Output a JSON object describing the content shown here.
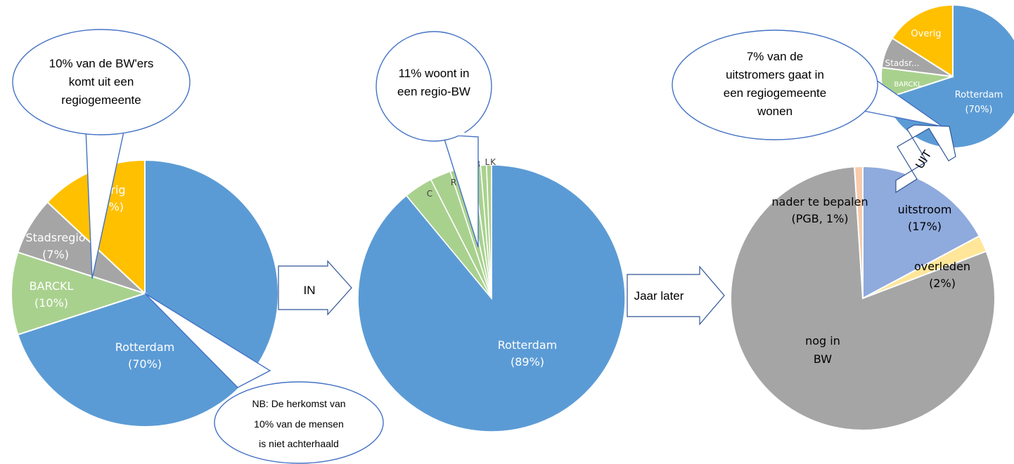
{
  "colors": {
    "rotterdam": "#5B9BD5",
    "barckl": "#A9D18E",
    "stadsregio": "#A5A5A5",
    "overig": "#FFC000",
    "nog_in_bw": "#A5A5A5",
    "uitstroom": "#8FAADC",
    "overleden": "#FFE699",
    "nader": "#F8CBAD",
    "callout_stroke": "#4472C4",
    "arrow_stroke": "#2F5597"
  },
  "chart_data": [
    {
      "type": "pie",
      "slices": [
        {
          "label": "Rotterdam",
          "pct_label": "(70%)",
          "value": 70
        },
        {
          "label": "BARCKL",
          "pct_label": "(10%)",
          "value": 10
        },
        {
          "label": "Stadsregio",
          "pct_label": "(7%)",
          "value": 7
        },
        {
          "label": "Overig",
          "pct_label": "(13%)",
          "value": 13
        }
      ]
    },
    {
      "type": "pie",
      "slices": [
        {
          "label": "Rotterdam",
          "pct_label": "(89%)",
          "value": 89
        },
        {
          "label": "C",
          "pct_label": "",
          "value": 3.5
        },
        {
          "label": "R",
          "pct_label": "",
          "value": 2.5
        },
        {
          "label": "A",
          "pct_label": "",
          "value": 1.5
        },
        {
          "label": "B",
          "pct_label": "",
          "value": 1.3
        },
        {
          "label": "",
          "pct_label": "",
          "value": 0.9
        },
        {
          "label": "L",
          "pct_label": "",
          "value": 0.7
        },
        {
          "label": "K",
          "pct_label": "",
          "value": 0.6
        }
      ]
    },
    {
      "type": "pie",
      "slices": [
        {
          "label": "uitstroom",
          "pct_label": "(17%)",
          "value": 17
        },
        {
          "label": "overleden",
          "pct_label": "(2%)",
          "value": 2
        },
        {
          "label": "nog in BW",
          "pct_label": "",
          "value": 79
        },
        {
          "label": "nader te bepalen",
          "pct_label": "(PGB, 1%)",
          "value": 1
        }
      ]
    },
    {
      "type": "pie",
      "slices": [
        {
          "label": "Rotterdam",
          "pct_label": "(70%)",
          "value": 70
        },
        {
          "label": "BARCKL",
          "pct_label": "",
          "value": 7
        },
        {
          "label": "Stadsr...",
          "pct_label": "",
          "value": 7
        },
        {
          "label": "Overig",
          "pct_label": "",
          "value": 16
        }
      ]
    }
  ],
  "callouts": {
    "c1": [
      "10% van de BW'ers",
      "komt uit een",
      "regiogemeente"
    ],
    "c2": [
      "11% woont in",
      "een regio-BW"
    ],
    "c3": [
      "7% van de",
      "uitstromers gaat in",
      "een regiogemeente",
      "wonen"
    ],
    "c4": [
      "NB: De herkomst van",
      "10% van de mensen",
      "is niet achterhaald"
    ]
  },
  "arrows": {
    "in": "IN",
    "jaar_later": "Jaar later",
    "uit": "UIT"
  }
}
